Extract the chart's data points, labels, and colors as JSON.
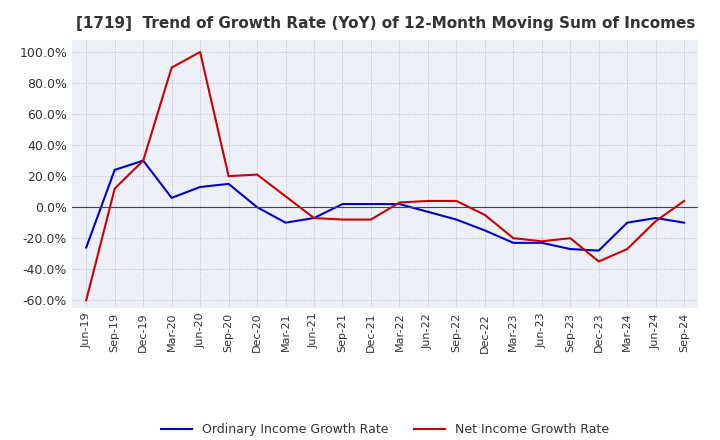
{
  "title": "[1719]  Trend of Growth Rate (YoY) of 12-Month Moving Sum of Incomes",
  "title_fontsize": 11,
  "ylabel_fontsize": 9,
  "xlabel_fontsize": 8,
  "ylim": [
    -0.65,
    1.08
  ],
  "yticks": [
    -0.6,
    -0.4,
    -0.2,
    0.0,
    0.2,
    0.4,
    0.6,
    0.8,
    1.0
  ],
  "background_color": "#ffffff",
  "plot_bg_color": "#eef0f8",
  "grid_color": "#aaaacc",
  "dates": [
    "Jun-19",
    "Sep-19",
    "Dec-19",
    "Mar-20",
    "Jun-20",
    "Sep-20",
    "Dec-20",
    "Mar-21",
    "Jun-21",
    "Sep-21",
    "Dec-21",
    "Mar-22",
    "Jun-22",
    "Sep-22",
    "Dec-22",
    "Mar-23",
    "Jun-23",
    "Sep-23",
    "Dec-23",
    "Mar-24",
    "Jun-24",
    "Sep-24"
  ],
  "ordinary_income_growth": [
    -0.26,
    0.24,
    0.3,
    0.06,
    0.13,
    0.15,
    0.0,
    -0.1,
    -0.07,
    0.02,
    0.02,
    0.02,
    -0.03,
    -0.08,
    -0.15,
    -0.23,
    -0.23,
    -0.27,
    -0.28,
    -0.1,
    -0.07,
    -0.1
  ],
  "net_income_growth": [
    -0.6,
    0.12,
    0.3,
    0.9,
    1.0,
    0.2,
    0.21,
    0.07,
    -0.07,
    -0.08,
    -0.08,
    0.03,
    0.04,
    0.04,
    -0.05,
    -0.2,
    -0.22,
    -0.2,
    -0.35,
    -0.27,
    -0.09,
    0.04
  ],
  "ordinary_color": "#0000cc",
  "net_color": "#cc0000",
  "line_width": 1.5,
  "legend_ordinary": "Ordinary Income Growth Rate",
  "legend_net": "Net Income Growth Rate"
}
